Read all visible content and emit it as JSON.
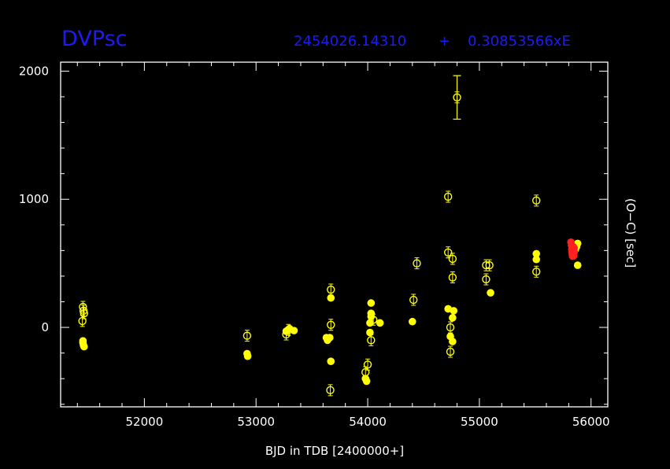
{
  "colors": {
    "background": "#000000",
    "frame": "#ffffff",
    "title": "#1c1cf0",
    "primary": "#ffff00",
    "secondary": "#ff2020"
  },
  "chart_data": {
    "type": "scatter",
    "title": "DVPsc",
    "ephemeris_left": "2454026.14310",
    "ephemeris_plus": "+",
    "ephemeris_right": "0.30853566xE",
    "xlabel": "BJD in TDB [2400000+]",
    "ylabel": "(O−C) [sec]",
    "xlim": [
      51250,
      56150
    ],
    "ylim": [
      -620,
      2070
    ],
    "xticks": [
      "52000",
      "53000",
      "54000",
      "55000",
      "56000"
    ],
    "yticks": [
      "0",
      "1000",
      "2000"
    ],
    "grid": false,
    "series": [
      {
        "marker": "open-circle",
        "color": "#ffff00",
        "points": [
          {
            "x": 51450,
            "y": 160
          },
          {
            "x": 51455,
            "y": 130
          },
          {
            "x": 51460,
            "y": 110
          },
          {
            "x": 51445,
            "y": 50
          },
          {
            "x": 52920,
            "y": -65
          },
          {
            "x": 53290,
            "y": -20
          },
          {
            "x": 53270,
            "y": -55
          },
          {
            "x": 53670,
            "y": 295
          },
          {
            "x": 53670,
            "y": 20
          },
          {
            "x": 53665,
            "y": -490
          },
          {
            "x": 53980,
            "y": -350
          },
          {
            "x": 54000,
            "y": -290
          },
          {
            "x": 54030,
            "y": -100
          },
          {
            "x": 54050,
            "y": 60
          },
          {
            "x": 54410,
            "y": 215
          },
          {
            "x": 54440,
            "y": 500
          },
          {
            "x": 54720,
            "y": 1020
          },
          {
            "x": 54720,
            "y": 585
          },
          {
            "x": 54760,
            "y": 535
          },
          {
            "x": 54760,
            "y": 390
          },
          {
            "x": 54740,
            "y": 0
          },
          {
            "x": 54740,
            "y": -190
          },
          {
            "x": 54800,
            "y": 1795,
            "err": 170
          },
          {
            "x": 55060,
            "y": 485
          },
          {
            "x": 55090,
            "y": 485
          },
          {
            "x": 55060,
            "y": 375
          },
          {
            "x": 55510,
            "y": 990
          },
          {
            "x": 55510,
            "y": 435
          }
        ]
      },
      {
        "marker": "filled-circle",
        "color": "#ffff00",
        "points": [
          {
            "x": 51450,
            "y": -105
          },
          {
            "x": 51450,
            "y": -120
          },
          {
            "x": 51455,
            "y": -140
          },
          {
            "x": 51460,
            "y": -150
          },
          {
            "x": 52920,
            "y": -205
          },
          {
            "x": 52925,
            "y": -225
          },
          {
            "x": 53270,
            "y": -30
          },
          {
            "x": 53300,
            "y": -10
          },
          {
            "x": 53340,
            "y": -25
          },
          {
            "x": 53630,
            "y": -80
          },
          {
            "x": 53640,
            "y": -100
          },
          {
            "x": 53660,
            "y": -80
          },
          {
            "x": 53670,
            "y": -265
          },
          {
            "x": 53670,
            "y": 230
          },
          {
            "x": 53980,
            "y": -400
          },
          {
            "x": 53990,
            "y": -420
          },
          {
            "x": 54020,
            "y": -40
          },
          {
            "x": 54020,
            "y": 35
          },
          {
            "x": 54030,
            "y": 85
          },
          {
            "x": 54030,
            "y": 110
          },
          {
            "x": 54030,
            "y": 190
          },
          {
            "x": 54110,
            "y": 35
          },
          {
            "x": 54400,
            "y": 45
          },
          {
            "x": 54720,
            "y": 145
          },
          {
            "x": 54740,
            "y": -70
          },
          {
            "x": 54760,
            "y": -110
          },
          {
            "x": 54760,
            "y": 75
          },
          {
            "x": 54770,
            "y": 130
          },
          {
            "x": 55100,
            "y": 270
          },
          {
            "x": 55510,
            "y": 575
          },
          {
            "x": 55510,
            "y": 530
          },
          {
            "x": 55860,
            "y": 610
          },
          {
            "x": 55870,
            "y": 630
          },
          {
            "x": 55880,
            "y": 655
          },
          {
            "x": 55880,
            "y": 485
          }
        ]
      },
      {
        "marker": "filled-circle",
        "color": "#ff2020",
        "points": [
          {
            "x": 55820,
            "y": 665
          },
          {
            "x": 55825,
            "y": 640
          },
          {
            "x": 55828,
            "y": 610
          },
          {
            "x": 55830,
            "y": 590
          },
          {
            "x": 55832,
            "y": 570
          },
          {
            "x": 55835,
            "y": 555
          },
          {
            "x": 55838,
            "y": 600
          },
          {
            "x": 55840,
            "y": 630
          },
          {
            "x": 55842,
            "y": 575
          },
          {
            "x": 55845,
            "y": 560
          },
          {
            "x": 55848,
            "y": 620
          },
          {
            "x": 55850,
            "y": 590
          }
        ]
      }
    ]
  }
}
